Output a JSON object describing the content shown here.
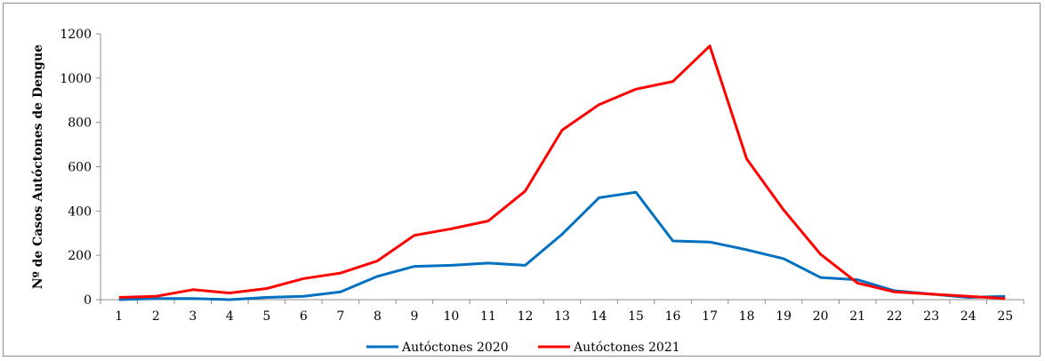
{
  "chart_data": {
    "type": "line",
    "title": "",
    "xlabel": "",
    "ylabel": "Nº de Casos  Autóctones de Dengue",
    "ylim": [
      0,
      1200
    ],
    "yticks": [
      0,
      200,
      400,
      600,
      800,
      1000,
      1200
    ],
    "categories": [
      "1",
      "2",
      "3",
      "4",
      "5",
      "6",
      "7",
      "8",
      "9",
      "10",
      "11",
      "12",
      "13",
      "14",
      "15",
      "16",
      "17",
      "18",
      "19",
      "20",
      "21",
      "22",
      "23",
      "24",
      "25"
    ],
    "grid": false,
    "legend_position": "bottom",
    "series": [
      {
        "name": "Autóctones 2020",
        "color": "#0070c0",
        "values": [
          0,
          5,
          5,
          0,
          10,
          15,
          35,
          105,
          150,
          155,
          165,
          155,
          295,
          460,
          485,
          265,
          260,
          225,
          185,
          100,
          90,
          40,
          25,
          10,
          15
        ]
      },
      {
        "name": "Autóctones 2021",
        "color": "#ff0000",
        "values": [
          10,
          15,
          45,
          30,
          50,
          95,
          120,
          175,
          290,
          320,
          355,
          490,
          765,
          880,
          950,
          985,
          1145,
          635,
          405,
          205,
          75,
          35,
          25,
          15,
          5
        ]
      }
    ]
  }
}
